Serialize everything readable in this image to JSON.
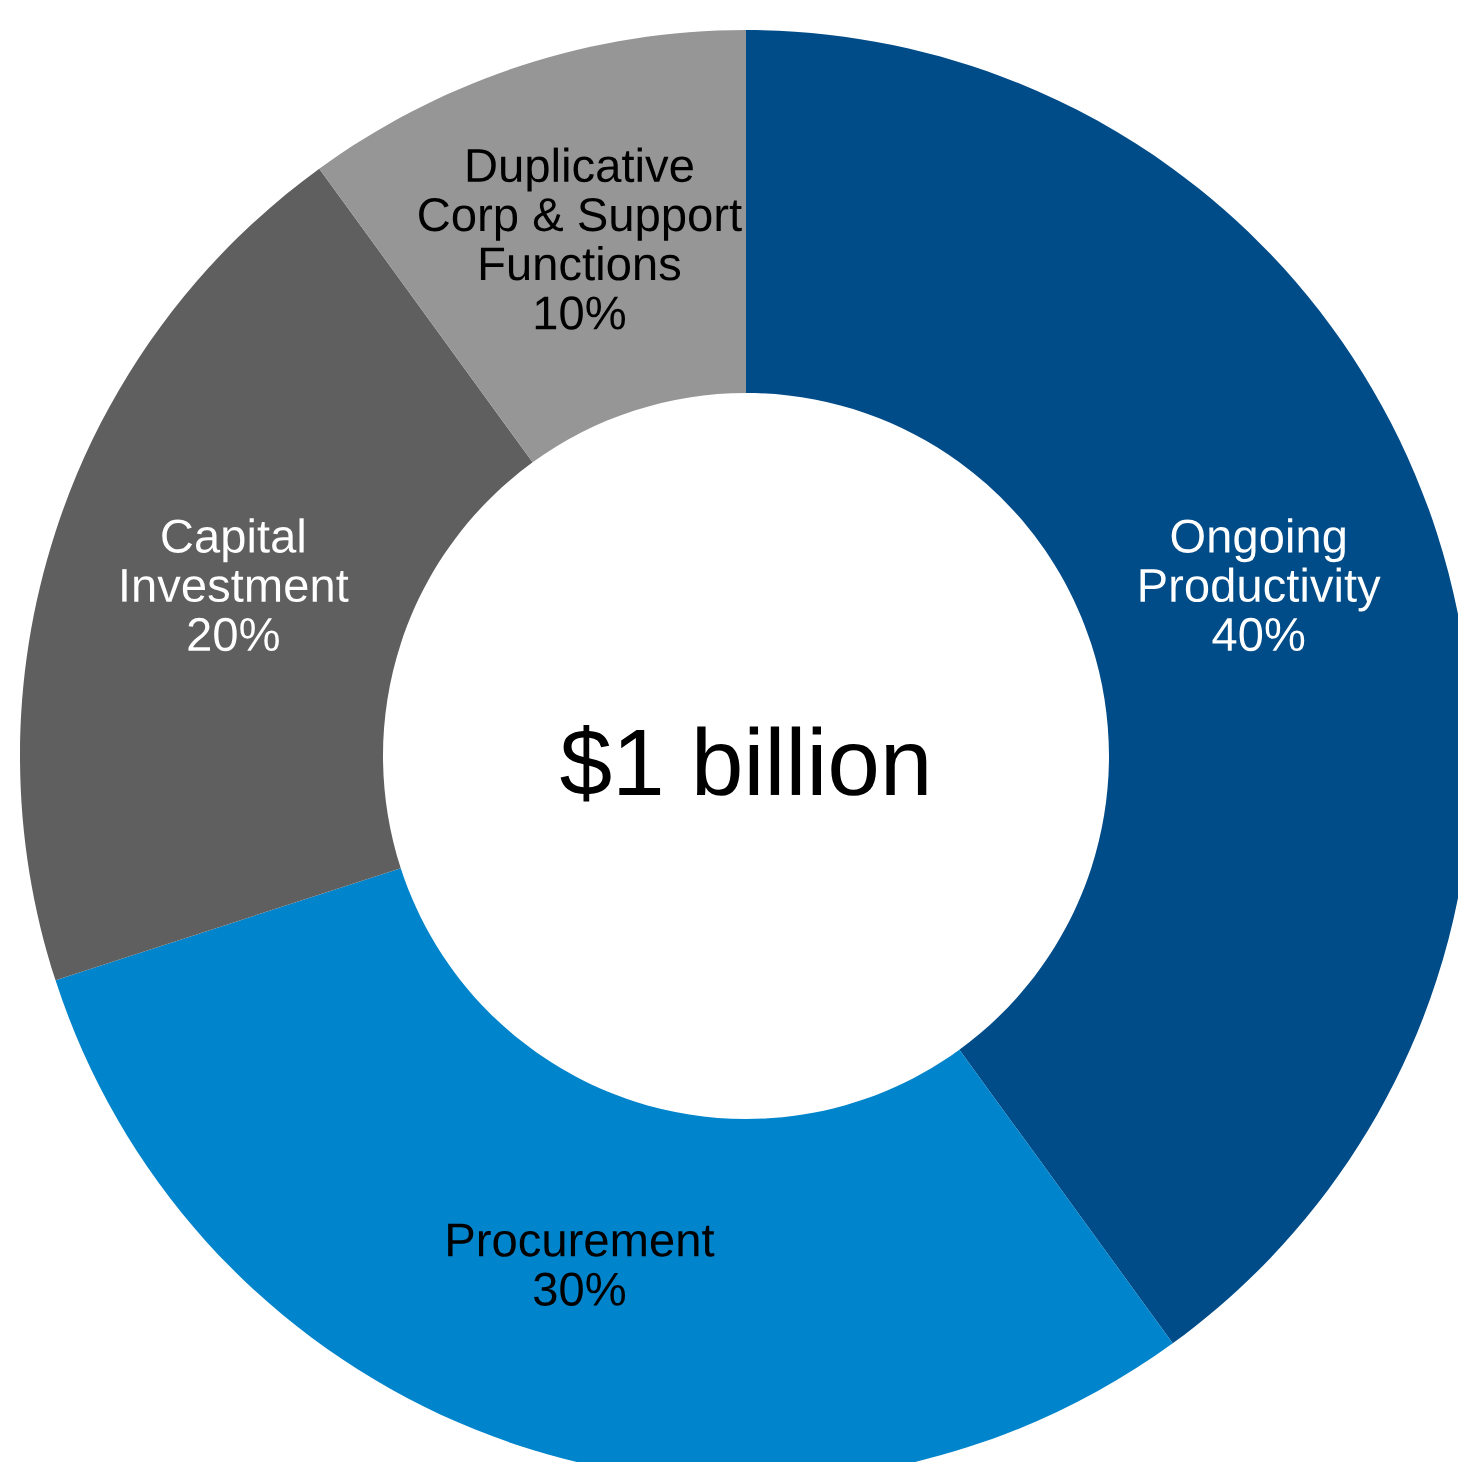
{
  "chart_data": {
    "type": "donut",
    "categories": [
      "Ongoing\nProductivity",
      "Procurement",
      "Capital\nInvestment",
      "Duplicative\nCorp & Support\nFunctions"
    ],
    "values": [
      40,
      30,
      20,
      10
    ],
    "colors": [
      "#004c89",
      "#0084cb",
      "#5f5f5f",
      "#969696"
    ],
    "value_labels": [
      "40%",
      "30%",
      "20%",
      "10%"
    ],
    "annotations": [
      "$1 billion"
    ]
  }
}
